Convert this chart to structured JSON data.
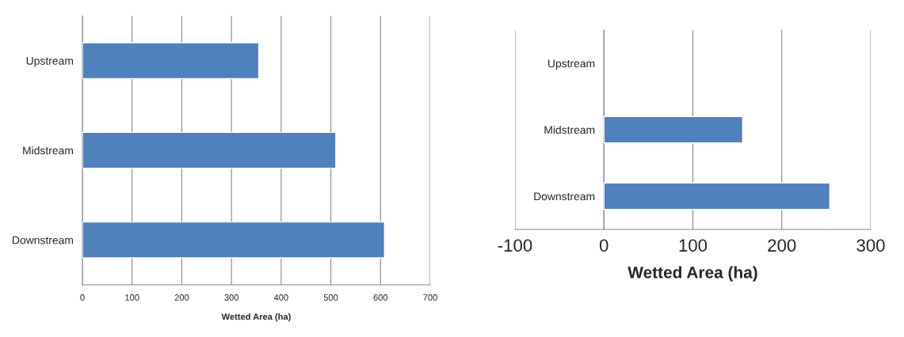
{
  "chart_data": [
    {
      "type": "bar",
      "orientation": "horizontal",
      "categories": [
        "Upstream",
        "Midstream",
        "Downstream"
      ],
      "values": [
        355,
        510,
        608
      ],
      "color": "#4f81bd",
      "xlabel": "Wetted Area (ha)",
      "xlim": [
        0,
        700
      ],
      "xticks": [
        0,
        100,
        200,
        300,
        400,
        500,
        600,
        700
      ],
      "grid": "x"
    },
    {
      "type": "bar",
      "orientation": "horizontal",
      "categories": [
        "Upstream",
        "Midstream",
        "Downstream"
      ],
      "values": [
        null,
        156,
        254
      ],
      "color": "#4f81bd",
      "xlabel": "Wetted Area (ha)",
      "xlim": [
        -100,
        300
      ],
      "xticks": [
        -100,
        0,
        100,
        200,
        300
      ],
      "grid": "x"
    }
  ]
}
